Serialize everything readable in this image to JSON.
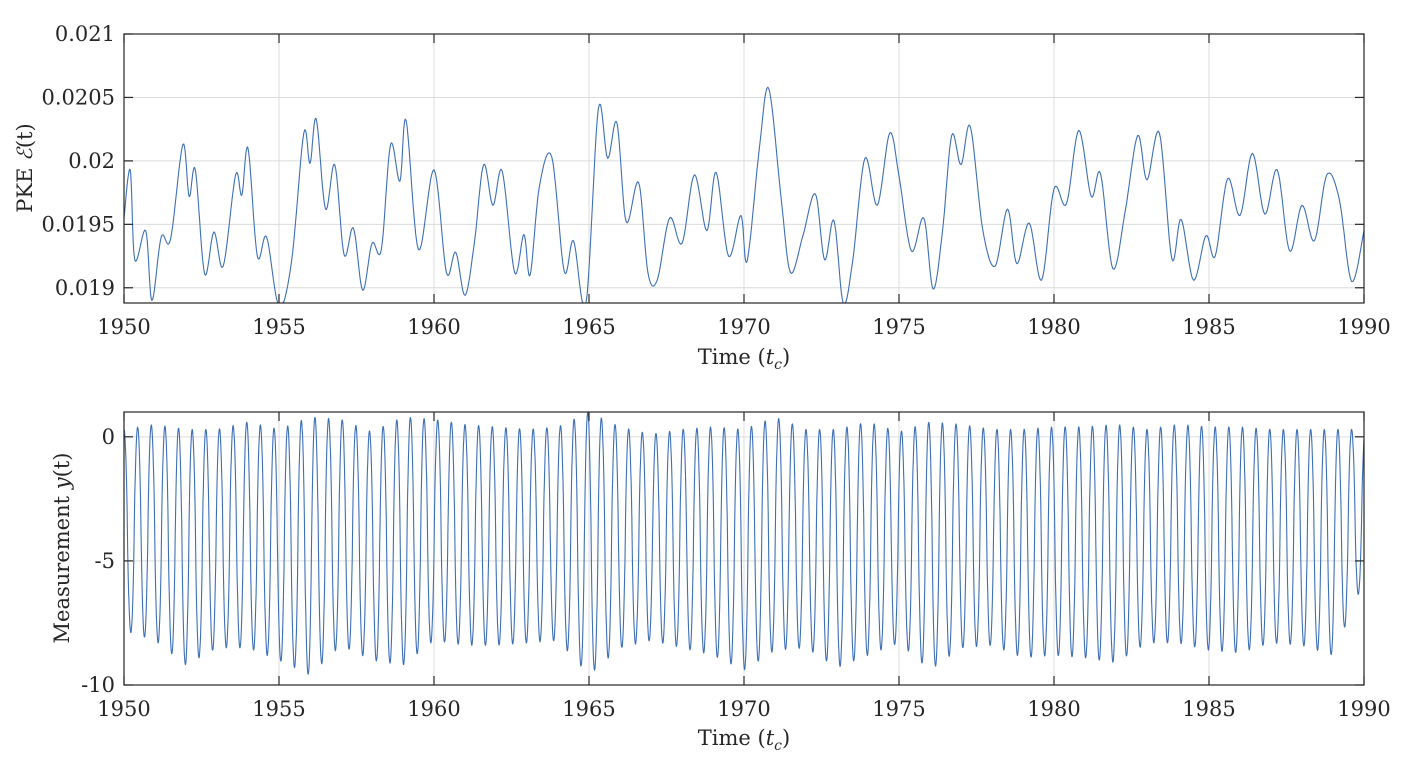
{
  "chart_data": [
    {
      "type": "line",
      "title": "",
      "xlabel_text": "Time (",
      "xlabel_sym": "t",
      "xlabel_sub": "c",
      "xlabel_close": ")",
      "ylabel_text": "PKE ",
      "ylabel_sym": "ℰ",
      "ylabel_arg": "(t)",
      "xlim": [
        1950,
        1990
      ],
      "ylim": [
        0.01888,
        0.021
      ],
      "xticks": [
        1950,
        1955,
        1960,
        1965,
        1970,
        1975,
        1980,
        1985,
        1990
      ],
      "xtick_labels": [
        "1950",
        "1955",
        "1960",
        "1965",
        "1970",
        "1975",
        "1980",
        "1985",
        "1990"
      ],
      "yticks": [
        0.019,
        0.0195,
        0.02,
        0.0205,
        0.021
      ],
      "ytick_labels": [
        "0.019",
        "0.0195",
        "0.02",
        "0.0205",
        "0.021"
      ],
      "grid": true,
      "color": "#3d6fb6",
      "series": [
        {
          "x": [
            1950.0,
            1950.2,
            1950.35,
            1950.7,
            1950.9,
            1951.2,
            1951.5,
            1951.9,
            1952.1,
            1952.3,
            1952.6,
            1952.9,
            1953.2,
            1953.6,
            1953.8,
            1954.0,
            1954.3,
            1954.6,
            1955.0,
            1955.4,
            1955.8,
            1956.0,
            1956.2,
            1956.5,
            1956.8,
            1957.1,
            1957.4,
            1957.7,
            1958.0,
            1958.3,
            1958.6,
            1958.9,
            1959.1,
            1959.5,
            1960.0,
            1960.4,
            1960.7,
            1961.0,
            1961.3,
            1961.6,
            1961.9,
            1962.2,
            1962.6,
            1962.9,
            1963.1,
            1963.4,
            1963.8,
            1964.2,
            1964.5,
            1964.9,
            1965.3,
            1965.6,
            1965.9,
            1966.2,
            1966.6,
            1966.9,
            1967.2,
            1967.6,
            1968.0,
            1968.4,
            1968.8,
            1969.1,
            1969.5,
            1969.9,
            1970.1,
            1970.5,
            1970.8,
            1971.2,
            1971.5,
            1971.9,
            1972.3,
            1972.6,
            1972.9,
            1973.2,
            1973.5,
            1973.9,
            1974.3,
            1974.7,
            1975.0,
            1975.4,
            1975.8,
            1976.1,
            1976.4,
            1976.7,
            1977.0,
            1977.3,
            1977.7,
            1978.1,
            1978.5,
            1978.8,
            1979.2,
            1979.6,
            1980.0,
            1980.4,
            1980.8,
            1981.2,
            1981.5,
            1981.9,
            1982.3,
            1982.7,
            1983.0,
            1983.4,
            1983.8,
            1984.1,
            1984.5,
            1984.9,
            1985.2,
            1985.6,
            1986.0,
            1986.4,
            1986.8,
            1987.2,
            1987.6,
            1988.0,
            1988.4,
            1988.8,
            1989.2,
            1989.6,
            1990.0
          ],
          "y": [
            0.01955,
            0.01993,
            0.01922,
            0.01945,
            0.0189,
            0.0194,
            0.01938,
            0.02013,
            0.01972,
            0.01993,
            0.01911,
            0.01944,
            0.01917,
            0.01989,
            0.01973,
            0.0201,
            0.01925,
            0.0194,
            0.01885,
            0.0192,
            0.02022,
            0.01998,
            0.02033,
            0.01962,
            0.01997,
            0.01926,
            0.01947,
            0.01898,
            0.01935,
            0.0193,
            0.02013,
            0.01984,
            0.02032,
            0.0193,
            0.01993,
            0.01912,
            0.01928,
            0.01894,
            0.01935,
            0.01997,
            0.01965,
            0.01992,
            0.01912,
            0.01942,
            0.0191,
            0.0198,
            0.02003,
            0.01913,
            0.01937,
            0.01887,
            0.02041,
            0.02002,
            0.0203,
            0.01952,
            0.01983,
            0.01912,
            0.01906,
            0.01955,
            0.01935,
            0.01989,
            0.01945,
            0.01991,
            0.01925,
            0.01957,
            0.01921,
            0.02011,
            0.02057,
            0.0197,
            0.01912,
            0.01941,
            0.01974,
            0.01922,
            0.01953,
            0.01888,
            0.0192,
            0.02002,
            0.01965,
            0.02022,
            0.01988,
            0.01929,
            0.01955,
            0.01899,
            0.01944,
            0.0202,
            0.01997,
            0.02027,
            0.01946,
            0.01917,
            0.01962,
            0.01919,
            0.01951,
            0.01906,
            0.01978,
            0.01966,
            0.02024,
            0.01972,
            0.0199,
            0.01915,
            0.01961,
            0.0202,
            0.01985,
            0.02022,
            0.01923,
            0.01954,
            0.01906,
            0.01941,
            0.01925,
            0.01986,
            0.01957,
            0.02006,
            0.01958,
            0.01993,
            0.01929,
            0.01965,
            0.01937,
            0.01989,
            0.0197,
            0.01905,
            0.01945
          ]
        }
      ]
    },
    {
      "type": "line",
      "title": "",
      "xlabel_text": "Time (",
      "xlabel_sym": "t",
      "xlabel_sub": "c",
      "xlabel_close": ")",
      "ylabel_text": "Measurement ",
      "ylabel_sym": "y",
      "ylabel_arg": "(t)",
      "xlim": [
        1950,
        1990
      ],
      "ylim": [
        -10,
        1
      ],
      "xticks": [
        1950,
        1955,
        1960,
        1965,
        1970,
        1975,
        1980,
        1985,
        1990
      ],
      "xtick_labels": [
        "1950",
        "1955",
        "1960",
        "1965",
        "1970",
        "1975",
        "1980",
        "1985",
        "1990"
      ],
      "yticks": [
        -10,
        -5,
        0
      ],
      "ytick_labels": [
        "-10",
        "-5",
        "0"
      ],
      "grid": true,
      "color": "#3d6fb6",
      "oscillation_period": 0.44,
      "series": [
        {
          "x": [
            1950.0,
            1951.0,
            1952.0,
            1953.0,
            1954.0,
            1955.0,
            1956.0,
            1957.0,
            1958.0,
            1959.0,
            1960.0,
            1961.0,
            1962.0,
            1963.0,
            1964.0,
            1965.0,
            1966.0,
            1967.0,
            1968.0,
            1969.0,
            1970.0,
            1971.0,
            1972.0,
            1973.0,
            1974.0,
            1975.0,
            1976.0,
            1977.0,
            1978.0,
            1979.0,
            1980.0,
            1981.0,
            1982.0,
            1983.0,
            1984.0,
            1985.0,
            1986.0,
            1987.0,
            1988.0,
            1989.0,
            1990.0
          ],
          "upper": [
            0.3,
            0.5,
            0.3,
            0.3,
            0.6,
            0.3,
            0.8,
            0.7,
            0.2,
            0.8,
            0.7,
            0.5,
            0.4,
            0.3,
            0.4,
            1.0,
            0.4,
            0.1,
            0.3,
            0.4,
            0.3,
            0.8,
            0.3,
            0.3,
            0.6,
            0.2,
            0.6,
            0.5,
            0.3,
            0.3,
            0.4,
            0.4,
            0.5,
            0.3,
            0.5,
            0.4,
            0.4,
            0.3,
            0.3,
            0.3,
            0.3
          ],
          "lower": [
            -7.8,
            -8.2,
            -9.2,
            -8.5,
            -8.5,
            -9.0,
            -9.6,
            -8.4,
            -9.0,
            -9.2,
            -8.2,
            -8.4,
            -8.4,
            -8.3,
            -8.2,
            -9.6,
            -8.5,
            -8.2,
            -8.5,
            -8.8,
            -9.4,
            -8.6,
            -8.5,
            -9.3,
            -8.8,
            -8.3,
            -9.4,
            -8.5,
            -8.4,
            -8.9,
            -8.8,
            -8.9,
            -9.1,
            -8.3,
            -8.3,
            -8.6,
            -8.7,
            -8.3,
            -8.4,
            -8.8,
            -5.8
          ]
        }
      ]
    }
  ]
}
